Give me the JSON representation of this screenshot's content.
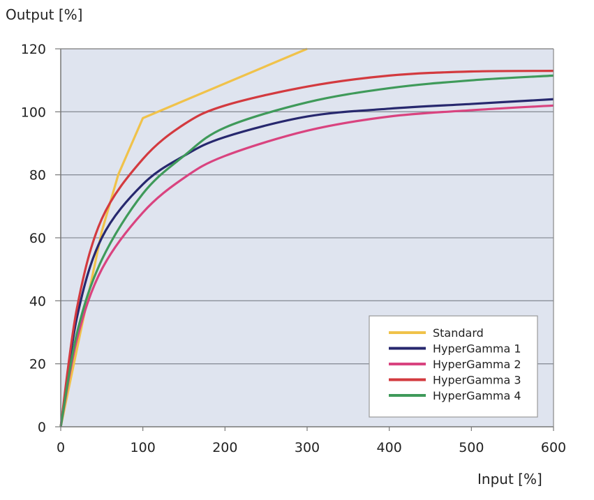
{
  "chart_data": {
    "type": "line",
    "title": "",
    "xlabel": "Input [%]",
    "ylabel": "Output [%]",
    "xlim": [
      0,
      600
    ],
    "ylim": [
      0,
      120
    ],
    "xticks": [
      0,
      100,
      200,
      300,
      400,
      500,
      600
    ],
    "yticks": [
      0,
      20,
      40,
      60,
      80,
      100,
      120
    ],
    "grid": "horizontal",
    "legend_position": "bottom-right",
    "background": "#dfe4ef",
    "series": [
      {
        "name": "Standard",
        "color": "#f0c24a",
        "x": [
          0,
          20,
          50,
          70,
          100,
          300
        ],
        "y": [
          0,
          25,
          62,
          80,
          98,
          120
        ]
      },
      {
        "name": "HyperGamma 1",
        "color": "#27286e",
        "x": [
          0,
          20,
          50,
          100,
          150,
          200,
          300,
          400,
          500,
          600
        ],
        "y": [
          0,
          35,
          60,
          77,
          86,
          92,
          98.5,
          101,
          102.5,
          104
        ]
      },
      {
        "name": "HyperGamma 2",
        "color": "#d9437f",
        "x": [
          0,
          20,
          50,
          100,
          150,
          200,
          300,
          400,
          500,
          600
        ],
        "y": [
          0,
          28,
          50,
          68,
          79,
          86,
          94,
          98.5,
          100.5,
          102
        ]
      },
      {
        "name": "HyperGamma 3",
        "color": "#d33a3f",
        "x": [
          0,
          20,
          50,
          100,
          150,
          200,
          300,
          400,
          500,
          600
        ],
        "y": [
          0,
          38,
          66,
          85,
          96,
          102,
          108,
          111.5,
          112.8,
          113
        ]
      },
      {
        "name": "HyperGamma 4",
        "color": "#3f9a5a",
        "x": [
          0,
          20,
          50,
          100,
          150,
          200,
          300,
          400,
          500,
          600
        ],
        "y": [
          0,
          30,
          53,
          74,
          86,
          95,
          103,
          107.5,
          110,
          111.5
        ]
      }
    ]
  }
}
